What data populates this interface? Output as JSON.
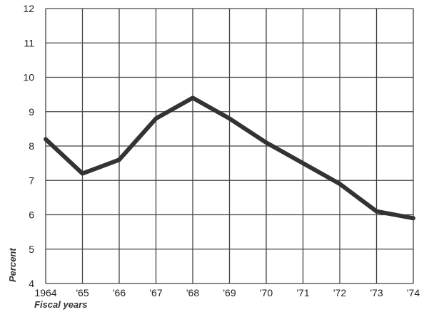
{
  "chart_data": {
    "type": "line",
    "title": "",
    "xlabel": "Fiscal years",
    "ylabel": "Percent",
    "x_tick_labels": [
      "1964",
      "'65",
      "'66",
      "'67",
      "'68",
      "'69",
      "'70",
      "'71",
      "'72",
      "'73",
      "'74"
    ],
    "y_ticks": [
      4,
      5,
      6,
      7,
      8,
      9,
      10,
      11,
      12
    ],
    "ylim": [
      4,
      12
    ],
    "grid": true,
    "series": [
      {
        "values": [
          8.2,
          7.2,
          7.6,
          8.8,
          9.4,
          8.8,
          8.1,
          7.5,
          6.9,
          6.1,
          5.9
        ]
      }
    ],
    "colors": {
      "line": "#333333",
      "grid": "#444444"
    }
  }
}
